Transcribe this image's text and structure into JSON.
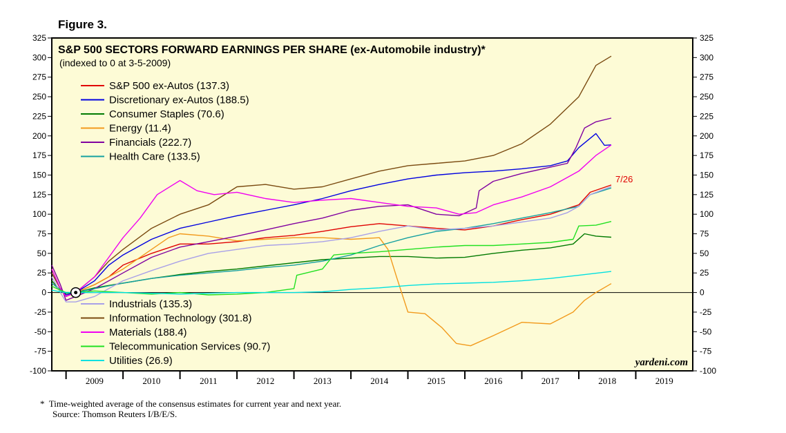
{
  "figure_label": "Figure 3.",
  "footnotes": {
    "line1": "*  Time-weighted average of the consensus estimates for current year and next year.",
    "line2": "Source: Thomson Reuters I/B/E/S."
  },
  "colors": {
    "background": "#fdfbd6",
    "frame": "#000000"
  },
  "chart_data": {
    "type": "line",
    "title": "S&P 500 SECTORS FORWARD EARNINGS PER SHARE (ex-Automobile industry)*",
    "subtitle": "(indexed to 0 at 3-5-2009)",
    "ylim": [
      -100,
      325
    ],
    "xlim": [
      2008.75,
      2020
    ],
    "y_ticks": [
      "325",
      "300",
      "275",
      "250",
      "225",
      "200",
      "175",
      "150",
      "125",
      "100",
      "75",
      "50",
      "25",
      "0",
      "-25",
      "-50",
      "-75",
      "-100"
    ],
    "x_tick_labels": [
      "2009",
      "2010",
      "2011",
      "2012",
      "2013",
      "2014",
      "2015",
      "2016",
      "2017",
      "2018",
      "2019"
    ],
    "grid": false,
    "annotation": "7/26",
    "watermark": "yardeni.com",
    "series": [
      {
        "name": "S&P 500 ex-Autos (137.3)",
        "color": "#e00000",
        "legend_group": "top",
        "points": [
          [
            2008.75,
            25
          ],
          [
            2008.9,
            5
          ],
          [
            2009.0,
            -3
          ],
          [
            2009.17,
            0
          ],
          [
            2009.5,
            10
          ],
          [
            2009.75,
            20
          ],
          [
            2010,
            35
          ],
          [
            2010.5,
            50
          ],
          [
            2011,
            62
          ],
          [
            2011.5,
            62
          ],
          [
            2012,
            65
          ],
          [
            2012.5,
            70
          ],
          [
            2013,
            73
          ],
          [
            2013.5,
            78
          ],
          [
            2014,
            84
          ],
          [
            2014.5,
            88
          ],
          [
            2015,
            85
          ],
          [
            2015.5,
            82
          ],
          [
            2016,
            80
          ],
          [
            2016.5,
            85
          ],
          [
            2017,
            93
          ],
          [
            2017.5,
            100
          ],
          [
            2018,
            112
          ],
          [
            2018.2,
            128
          ],
          [
            2018.57,
            137.3
          ]
        ]
      },
      {
        "name": "Discretionary ex-Autos (188.5)",
        "color": "#0000e0",
        "legend_group": "top",
        "points": [
          [
            2008.75,
            25
          ],
          [
            2008.9,
            5
          ],
          [
            2009.0,
            -3
          ],
          [
            2009.17,
            0
          ],
          [
            2009.5,
            15
          ],
          [
            2009.75,
            35
          ],
          [
            2010,
            48
          ],
          [
            2010.5,
            68
          ],
          [
            2011,
            82
          ],
          [
            2011.5,
            90
          ],
          [
            2012,
            98
          ],
          [
            2012.5,
            105
          ],
          [
            2013,
            112
          ],
          [
            2013.5,
            120
          ],
          [
            2014,
            130
          ],
          [
            2014.5,
            138
          ],
          [
            2015,
            145
          ],
          [
            2015.5,
            150
          ],
          [
            2016,
            153
          ],
          [
            2016.5,
            155
          ],
          [
            2017,
            158
          ],
          [
            2017.5,
            162
          ],
          [
            2017.8,
            168
          ],
          [
            2018.0,
            185
          ],
          [
            2018.3,
            203
          ],
          [
            2018.45,
            188
          ],
          [
            2018.57,
            188.5
          ]
        ]
      },
      {
        "name": "Consumer Staples (70.6)",
        "color": "#007a00",
        "legend_group": "top",
        "points": [
          [
            2008.75,
            15
          ],
          [
            2008.9,
            3
          ],
          [
            2009.0,
            -1
          ],
          [
            2009.17,
            0
          ],
          [
            2009.5,
            6
          ],
          [
            2010,
            12
          ],
          [
            2010.5,
            18
          ],
          [
            2011,
            23
          ],
          [
            2011.5,
            27
          ],
          [
            2012,
            30
          ],
          [
            2012.5,
            34
          ],
          [
            2013,
            38
          ],
          [
            2013.5,
            42
          ],
          [
            2014,
            44
          ],
          [
            2014.5,
            46
          ],
          [
            2015,
            46
          ],
          [
            2015.5,
            44
          ],
          [
            2016,
            45
          ],
          [
            2016.5,
            50
          ],
          [
            2017,
            54
          ],
          [
            2017.5,
            57
          ],
          [
            2017.9,
            62
          ],
          [
            2018.1,
            75
          ],
          [
            2018.3,
            72
          ],
          [
            2018.57,
            70.6
          ]
        ]
      },
      {
        "name": "Energy (11.4)",
        "color": "#f29a1c",
        "legend_group": "top",
        "points": [
          [
            2008.75,
            30
          ],
          [
            2008.9,
            5
          ],
          [
            2009.0,
            -5
          ],
          [
            2009.17,
            0
          ],
          [
            2009.5,
            10
          ],
          [
            2010,
            30
          ],
          [
            2010.5,
            55
          ],
          [
            2010.8,
            70
          ],
          [
            2011,
            75
          ],
          [
            2011.5,
            72
          ],
          [
            2012,
            66
          ],
          [
            2012.5,
            68
          ],
          [
            2013,
            70
          ],
          [
            2013.5,
            70
          ],
          [
            2014,
            68
          ],
          [
            2014.5,
            70
          ],
          [
            2014.65,
            55
          ],
          [
            2014.8,
            20
          ],
          [
            2015,
            -25
          ],
          [
            2015.3,
            -27
          ],
          [
            2015.6,
            -45
          ],
          [
            2015.85,
            -65
          ],
          [
            2016.1,
            -68
          ],
          [
            2016.5,
            -55
          ],
          [
            2017,
            -38
          ],
          [
            2017.5,
            -40
          ],
          [
            2017.9,
            -25
          ],
          [
            2018.1,
            -10
          ],
          [
            2018.3,
            0
          ],
          [
            2018.57,
            11.4
          ]
        ]
      },
      {
        "name": "Financials (222.7)",
        "color": "#8000a0",
        "legend_group": "top",
        "points": [
          [
            2008.75,
            35
          ],
          [
            2008.9,
            10
          ],
          [
            2009.0,
            -10
          ],
          [
            2009.17,
            -5
          ],
          [
            2009.5,
            5
          ],
          [
            2009.75,
            15
          ],
          [
            2010,
            25
          ],
          [
            2010.5,
            45
          ],
          [
            2011,
            58
          ],
          [
            2011.5,
            65
          ],
          [
            2012,
            72
          ],
          [
            2012.5,
            80
          ],
          [
            2013,
            88
          ],
          [
            2013.5,
            95
          ],
          [
            2014,
            105
          ],
          [
            2014.5,
            110
          ],
          [
            2015,
            112
          ],
          [
            2015.5,
            100
          ],
          [
            2015.9,
            98
          ],
          [
            2016.2,
            108
          ],
          [
            2016.25,
            130
          ],
          [
            2016.5,
            142
          ],
          [
            2017,
            152
          ],
          [
            2017.5,
            160
          ],
          [
            2017.8,
            165
          ],
          [
            2017.95,
            185
          ],
          [
            2018.1,
            210
          ],
          [
            2018.3,
            218
          ],
          [
            2018.57,
            222.7
          ]
        ]
      },
      {
        "name": "Health Care (133.5)",
        "color": "#14a0a0",
        "legend_group": "top",
        "points": [
          [
            2008.75,
            12
          ],
          [
            2008.9,
            3
          ],
          [
            2009.0,
            0
          ],
          [
            2009.17,
            0
          ],
          [
            2009.5,
            5
          ],
          [
            2010,
            12
          ],
          [
            2010.5,
            18
          ],
          [
            2011,
            22
          ],
          [
            2011.5,
            25
          ],
          [
            2012,
            28
          ],
          [
            2012.5,
            32
          ],
          [
            2013,
            35
          ],
          [
            2013.5,
            40
          ],
          [
            2014,
            48
          ],
          [
            2014.5,
            60
          ],
          [
            2015,
            70
          ],
          [
            2015.5,
            78
          ],
          [
            2016,
            82
          ],
          [
            2016.5,
            88
          ],
          [
            2017,
            95
          ],
          [
            2017.5,
            102
          ],
          [
            2018,
            110
          ],
          [
            2018.2,
            125
          ],
          [
            2018.57,
            133.5
          ]
        ]
      },
      {
        "name": "Industrials (135.3)",
        "color": "#a8a0e8",
        "legend_group": "bottom",
        "points": [
          [
            2008.75,
            20
          ],
          [
            2008.9,
            0
          ],
          [
            2009.0,
            -12
          ],
          [
            2009.17,
            -12
          ],
          [
            2009.5,
            -5
          ],
          [
            2009.75,
            5
          ],
          [
            2010,
            15
          ],
          [
            2010.5,
            28
          ],
          [
            2011,
            40
          ],
          [
            2011.5,
            50
          ],
          [
            2012,
            55
          ],
          [
            2012.5,
            60
          ],
          [
            2013,
            62
          ],
          [
            2013.5,
            65
          ],
          [
            2014,
            70
          ],
          [
            2014.5,
            78
          ],
          [
            2015,
            85
          ],
          [
            2015.5,
            80
          ],
          [
            2016,
            82
          ],
          [
            2016.5,
            85
          ],
          [
            2017,
            90
          ],
          [
            2017.5,
            95
          ],
          [
            2017.8,
            102
          ],
          [
            2018,
            110
          ],
          [
            2018.2,
            125
          ],
          [
            2018.57,
            135.3
          ]
        ]
      },
      {
        "name": "Information Technology (301.8)",
        "color": "#7a4a10",
        "legend_group": "bottom",
        "points": [
          [
            2008.75,
            25
          ],
          [
            2008.9,
            5
          ],
          [
            2009.0,
            -5
          ],
          [
            2009.17,
            0
          ],
          [
            2009.5,
            20
          ],
          [
            2009.75,
            40
          ],
          [
            2010,
            55
          ],
          [
            2010.5,
            82
          ],
          [
            2011,
            100
          ],
          [
            2011.5,
            112
          ],
          [
            2012,
            135
          ],
          [
            2012.5,
            138
          ],
          [
            2013,
            132
          ],
          [
            2013.5,
            135
          ],
          [
            2014,
            145
          ],
          [
            2014.5,
            155
          ],
          [
            2015,
            162
          ],
          [
            2015.5,
            165
          ],
          [
            2016,
            168
          ],
          [
            2016.5,
            175
          ],
          [
            2017,
            190
          ],
          [
            2017.5,
            215
          ],
          [
            2018,
            250
          ],
          [
            2018.3,
            290
          ],
          [
            2018.57,
            301.8
          ]
        ]
      },
      {
        "name": "Materials (188.4)",
        "color": "#f000f0",
        "legend_group": "bottom",
        "points": [
          [
            2008.75,
            30
          ],
          [
            2008.9,
            5
          ],
          [
            2009.0,
            -5
          ],
          [
            2009.17,
            0
          ],
          [
            2009.5,
            20
          ],
          [
            2009.75,
            45
          ],
          [
            2010,
            70
          ],
          [
            2010.3,
            95
          ],
          [
            2010.6,
            125
          ],
          [
            2011,
            143
          ],
          [
            2011.3,
            130
          ],
          [
            2011.6,
            125
          ],
          [
            2012,
            128
          ],
          [
            2012.5,
            120
          ],
          [
            2013,
            115
          ],
          [
            2013.5,
            118
          ],
          [
            2014,
            120
          ],
          [
            2014.5,
            115
          ],
          [
            2015,
            110
          ],
          [
            2015.5,
            108
          ],
          [
            2015.9,
            100
          ],
          [
            2016.2,
            102
          ],
          [
            2016.5,
            112
          ],
          [
            2017,
            122
          ],
          [
            2017.5,
            135
          ],
          [
            2018,
            155
          ],
          [
            2018.3,
            175
          ],
          [
            2018.57,
            188.4
          ]
        ]
      },
      {
        "name": "Telecommunication Services (90.7)",
        "color": "#20e020",
        "legend_group": "bottom",
        "points": [
          [
            2008.75,
            8
          ],
          [
            2008.9,
            3
          ],
          [
            2009.0,
            0
          ],
          [
            2009.17,
            0
          ],
          [
            2009.5,
            2
          ],
          [
            2010,
            0
          ],
          [
            2010.5,
            -2
          ],
          [
            2011,
            0
          ],
          [
            2011.5,
            -3
          ],
          [
            2012,
            -2
          ],
          [
            2012.5,
            0
          ],
          [
            2013,
            5
          ],
          [
            2013.05,
            22
          ],
          [
            2013.5,
            30
          ],
          [
            2013.7,
            48
          ],
          [
            2014,
            50
          ],
          [
            2014.5,
            52
          ],
          [
            2015,
            55
          ],
          [
            2015.5,
            58
          ],
          [
            2016,
            60
          ],
          [
            2016.5,
            60
          ],
          [
            2017,
            62
          ],
          [
            2017.5,
            64
          ],
          [
            2017.9,
            68
          ],
          [
            2018.0,
            85
          ],
          [
            2018.3,
            86
          ],
          [
            2018.57,
            90.7
          ]
        ]
      },
      {
        "name": "Utilities (26.9)",
        "color": "#00e0e0",
        "legend_group": "bottom",
        "points": [
          [
            2008.75,
            3
          ],
          [
            2008.9,
            1
          ],
          [
            2009.0,
            0
          ],
          [
            2009.17,
            0
          ],
          [
            2009.5,
            0
          ],
          [
            2010,
            0
          ],
          [
            2010.5,
            -1
          ],
          [
            2011,
            -2
          ],
          [
            2011.5,
            -1
          ],
          [
            2012,
            0
          ],
          [
            2012.5,
            0
          ],
          [
            2013,
            0
          ],
          [
            2013.5,
            1
          ],
          [
            2014,
            4
          ],
          [
            2014.5,
            6
          ],
          [
            2015,
            9
          ],
          [
            2015.5,
            11
          ],
          [
            2016,
            12
          ],
          [
            2016.5,
            13
          ],
          [
            2017,
            15
          ],
          [
            2017.5,
            18
          ],
          [
            2018,
            22
          ],
          [
            2018.57,
            26.9
          ]
        ]
      }
    ]
  }
}
